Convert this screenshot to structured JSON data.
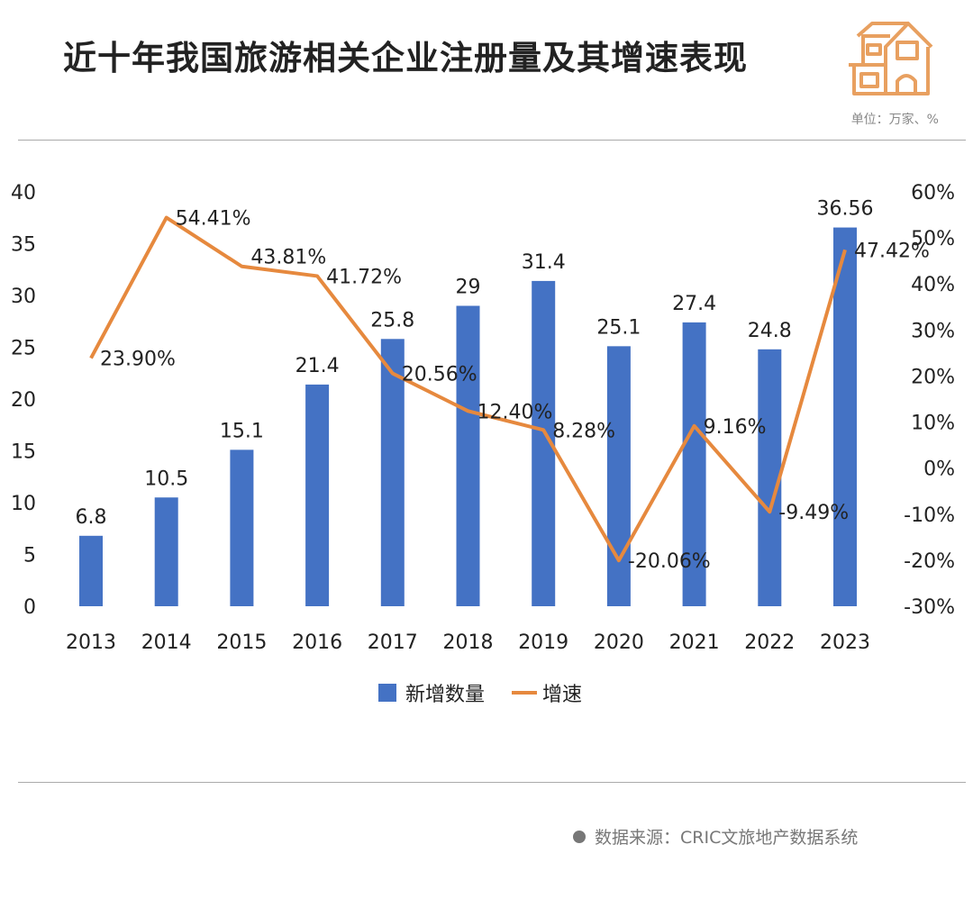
{
  "header": {
    "title": "近十年我国旅游相关企业注册量及其增速表现",
    "unit": "单位：万家、%",
    "icon": "house-icon"
  },
  "footer": {
    "source": "数据来源：CRIC文旅地产数据系统"
  },
  "chart_data": {
    "type": "bar+line",
    "title": "近十年我国旅游相关企业注册量及其增速表现",
    "categories": [
      "2013",
      "2014",
      "2015",
      "2016",
      "2017",
      "2018",
      "2019",
      "2020",
      "2021",
      "2022",
      "2023"
    ],
    "series": [
      {
        "name": "新增数量",
        "type": "bar",
        "axis": "left",
        "color": "#4472c4",
        "values": [
          6.8,
          10.5,
          15.1,
          21.4,
          25.8,
          29,
          31.4,
          25.1,
          27.4,
          24.8,
          36.56
        ],
        "labels": [
          "6.8",
          "10.5",
          "15.1",
          "21.4",
          "25.8",
          "29",
          "31.4",
          "25.1",
          "27.4",
          "24.8",
          "36.56"
        ]
      },
      {
        "name": "增速",
        "type": "line",
        "axis": "right",
        "color": "#e6893e",
        "values": [
          23.9,
          54.41,
          43.81,
          41.72,
          20.56,
          12.4,
          8.28,
          -20.06,
          9.16,
          -9.49,
          47.42
        ],
        "labels": [
          "23.90%",
          "54.41%",
          "43.81%",
          "41.72%",
          "20.56%",
          "12.40%",
          "8.28%",
          "-20.06%",
          "9.16%",
          "-9.49%",
          "47.42%"
        ]
      }
    ],
    "y_left": {
      "range": [
        0,
        40
      ],
      "ticks": [
        "0",
        "5",
        "10",
        "15",
        "20",
        "25",
        "30",
        "35",
        "40"
      ]
    },
    "y_right": {
      "range": [
        -30,
        60
      ],
      "ticks": [
        "-30%",
        "-20%",
        "-10%",
        "0%",
        "10%",
        "20%",
        "30%",
        "40%",
        "50%",
        "60%"
      ]
    },
    "grid": false,
    "legend": "bottom"
  }
}
